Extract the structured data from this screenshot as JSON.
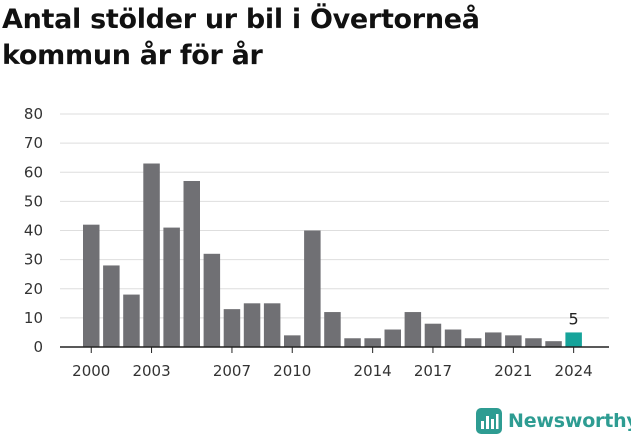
{
  "title": "Antal stölder ur bil i Övertorneå kommun år för år",
  "brand": {
    "name": "Newsworthy"
  },
  "colors": {
    "bar": "#707074",
    "highlight": "#16a39a",
    "grid": "#dedede",
    "axis": "#222222"
  },
  "chart_data": {
    "type": "bar",
    "title": "Antal stölder ur bil i Övertorneå kommun år för år",
    "xlabel": "",
    "ylabel": "",
    "ylim": [
      0,
      80
    ],
    "yticks": [
      0,
      10,
      20,
      30,
      40,
      50,
      60,
      70,
      80
    ],
    "xtick_labels": [
      "2000",
      "2003",
      "2007",
      "2010",
      "2014",
      "2017",
      "2021",
      "2024"
    ],
    "categories": [
      "2000",
      "2001",
      "2002",
      "2003",
      "2004",
      "2005",
      "2006",
      "2007",
      "2008",
      "2009",
      "2010",
      "2011",
      "2012",
      "2013",
      "2014",
      "2015",
      "2016",
      "2017",
      "2018",
      "2019",
      "2020",
      "2021",
      "2022",
      "2023",
      "2024"
    ],
    "values": [
      42,
      28,
      18,
      63,
      41,
      57,
      32,
      13,
      15,
      15,
      4,
      40,
      12,
      3,
      3,
      6,
      12,
      8,
      6,
      3,
      5,
      4,
      3,
      2,
      5
    ],
    "highlight": {
      "category": "2024",
      "label": "5"
    },
    "grid": true,
    "legend": "none"
  }
}
